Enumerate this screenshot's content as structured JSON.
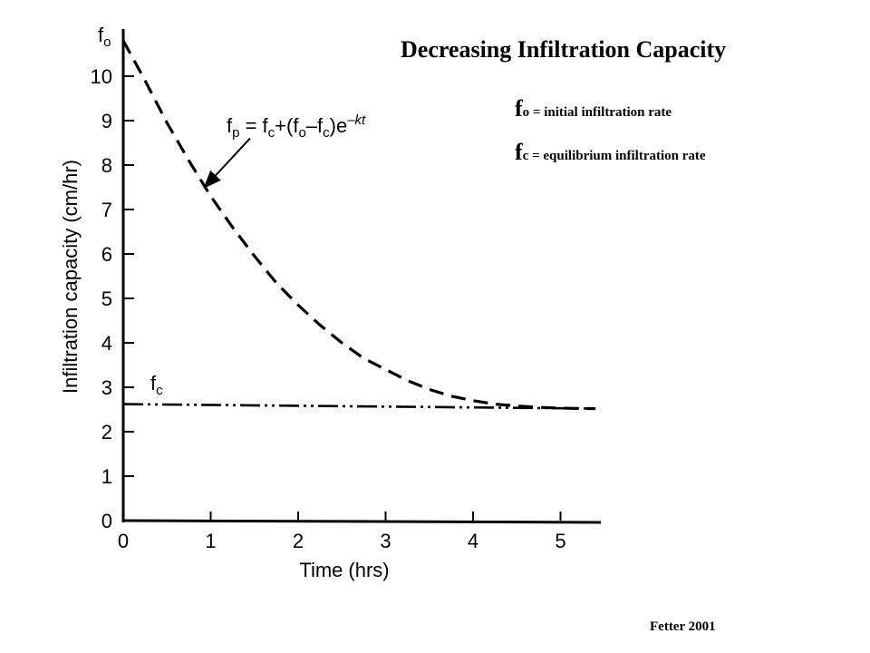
{
  "slide": {
    "title": "Decreasing Infiltration Capacity",
    "legend": [
      {
        "symbol": "f",
        "subscript": "o",
        "text": " = initial infiltration rate"
      },
      {
        "symbol": "f",
        "subscript": "c",
        "text": " = equilibrium infiltration rate"
      }
    ],
    "source": "Fetter 2001"
  },
  "chart_data": {
    "type": "line",
    "xlabel_main": "Time",
    "xlabel_unit": "(hrs)",
    "ylabel": "Infiltration capacity (cm/hr)",
    "xlim": [
      0,
      5.4
    ],
    "ylim": [
      0,
      11
    ],
    "x_ticks": [
      "0",
      "1",
      "2",
      "3",
      "4",
      "5"
    ],
    "y_ticks": [
      "0",
      "1",
      "2",
      "3",
      "4",
      "5",
      "6",
      "7",
      "8",
      "9",
      "10"
    ],
    "fo_label": {
      "main": "f",
      "sub": "o"
    },
    "fc_label": {
      "main": "f",
      "sub": "c"
    },
    "equation": {
      "a": "f",
      "a_sub": "p",
      "b": " = f",
      "b_sub": "c",
      "c": "+(f",
      "c_sub": "o",
      "d": "–f",
      "d_sub": "c",
      "e": ")e",
      "exp": "–kt"
    },
    "series": [
      {
        "style": "dashed",
        "x": [
          0,
          0.25,
          0.5,
          0.75,
          1.0,
          1.25,
          1.5,
          1.75,
          2.0,
          2.25,
          2.5,
          2.75,
          3.0,
          3.25,
          3.5,
          3.75,
          4.0,
          4.25,
          4.5,
          4.75,
          5.0,
          5.25,
          5.4
        ],
        "y": [
          10.8,
          9.9,
          8.95,
          8.1,
          7.3,
          6.6,
          5.95,
          5.35,
          4.85,
          4.4,
          4.0,
          3.65,
          3.4,
          3.15,
          2.95,
          2.8,
          2.7,
          2.62,
          2.58,
          2.55,
          2.53,
          2.52,
          2.52
        ]
      },
      {
        "style": "dash-dot-dot",
        "x": [
          0,
          5.4
        ],
        "y": [
          2.62,
          2.52
        ]
      }
    ],
    "arrow": {
      "from": [
        1.45,
        8.6
      ],
      "to": [
        0.93,
        7.5
      ]
    }
  }
}
